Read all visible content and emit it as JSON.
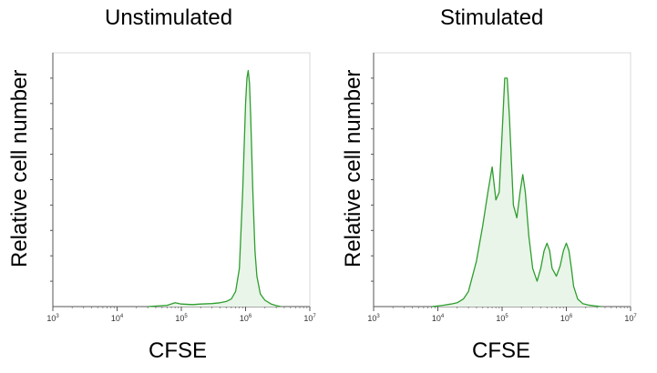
{
  "chart_data": [
    {
      "type": "area",
      "title": "Unstimulated",
      "xlabel": "CFSE",
      "ylabel": "Relative cell number",
      "x_scale": "log",
      "xlim": [
        1000,
        10000000
      ],
      "ylim": [
        0,
        1
      ],
      "x_ticks": [
        {
          "value": 1000,
          "base": "10",
          "exp": "3"
        },
        {
          "value": 10000,
          "base": "10",
          "exp": "4"
        },
        {
          "value": 100000,
          "base": "10",
          "exp": "5"
        },
        {
          "value": 1000000,
          "base": "10",
          "exp": "6"
        },
        {
          "value": 10000000,
          "base": "10",
          "exp": "7"
        }
      ],
      "color": "#2e9e2e",
      "fill": "#e9f5e9",
      "series": [
        {
          "x": [
            30000,
            60000,
            80000,
            100000,
            150000,
            200000,
            300000,
            400000,
            500000,
            600000,
            700000,
            800000,
            900000,
            1000000,
            1050000,
            1100000,
            1150000,
            1200000,
            1300000,
            1400000,
            1500000,
            1700000,
            2000000,
            2500000,
            3000000,
            3500000
          ],
          "y": [
            0.0,
            0.005,
            0.015,
            0.01,
            0.008,
            0.01,
            0.012,
            0.015,
            0.02,
            0.03,
            0.06,
            0.15,
            0.45,
            0.8,
            0.9,
            0.93,
            0.88,
            0.75,
            0.45,
            0.22,
            0.12,
            0.05,
            0.025,
            0.01,
            0.004,
            0.0
          ]
        }
      ]
    },
    {
      "type": "area",
      "title": "Stimulated",
      "xlabel": "CFSE",
      "ylabel": "Relative cell number",
      "x_scale": "log",
      "xlim": [
        1000,
        10000000
      ],
      "ylim": [
        0,
        1
      ],
      "x_ticks": [
        {
          "value": 1000,
          "base": "10",
          "exp": "3"
        },
        {
          "value": 10000,
          "base": "10",
          "exp": "4"
        },
        {
          "value": 100000,
          "base": "10",
          "exp": "5"
        },
        {
          "value": 1000000,
          "base": "10",
          "exp": "6"
        },
        {
          "value": 10000000,
          "base": "10",
          "exp": "7"
        }
      ],
      "color": "#2e9e2e",
      "fill": "#e9f5e9",
      "series": [
        {
          "x": [
            8000,
            12000,
            16000,
            20000,
            25000,
            30000,
            40000,
            50000,
            60000,
            70000,
            80000,
            90000,
            100000,
            110000,
            120000,
            130000,
            150000,
            170000,
            190000,
            210000,
            230000,
            260000,
            300000,
            350000,
            400000,
            450000,
            500000,
            550000,
            600000,
            700000,
            800000,
            900000,
            1000000,
            1100000,
            1200000,
            1300000,
            1500000,
            1800000,
            2200000,
            2700000,
            3500000
          ],
          "y": [
            0.0,
            0.005,
            0.01,
            0.015,
            0.03,
            0.06,
            0.18,
            0.32,
            0.45,
            0.55,
            0.42,
            0.45,
            0.68,
            0.9,
            0.9,
            0.75,
            0.4,
            0.35,
            0.45,
            0.52,
            0.45,
            0.28,
            0.15,
            0.1,
            0.15,
            0.22,
            0.25,
            0.22,
            0.15,
            0.12,
            0.16,
            0.22,
            0.25,
            0.22,
            0.15,
            0.08,
            0.03,
            0.012,
            0.006,
            0.003,
            0.0
          ]
        }
      ]
    }
  ]
}
